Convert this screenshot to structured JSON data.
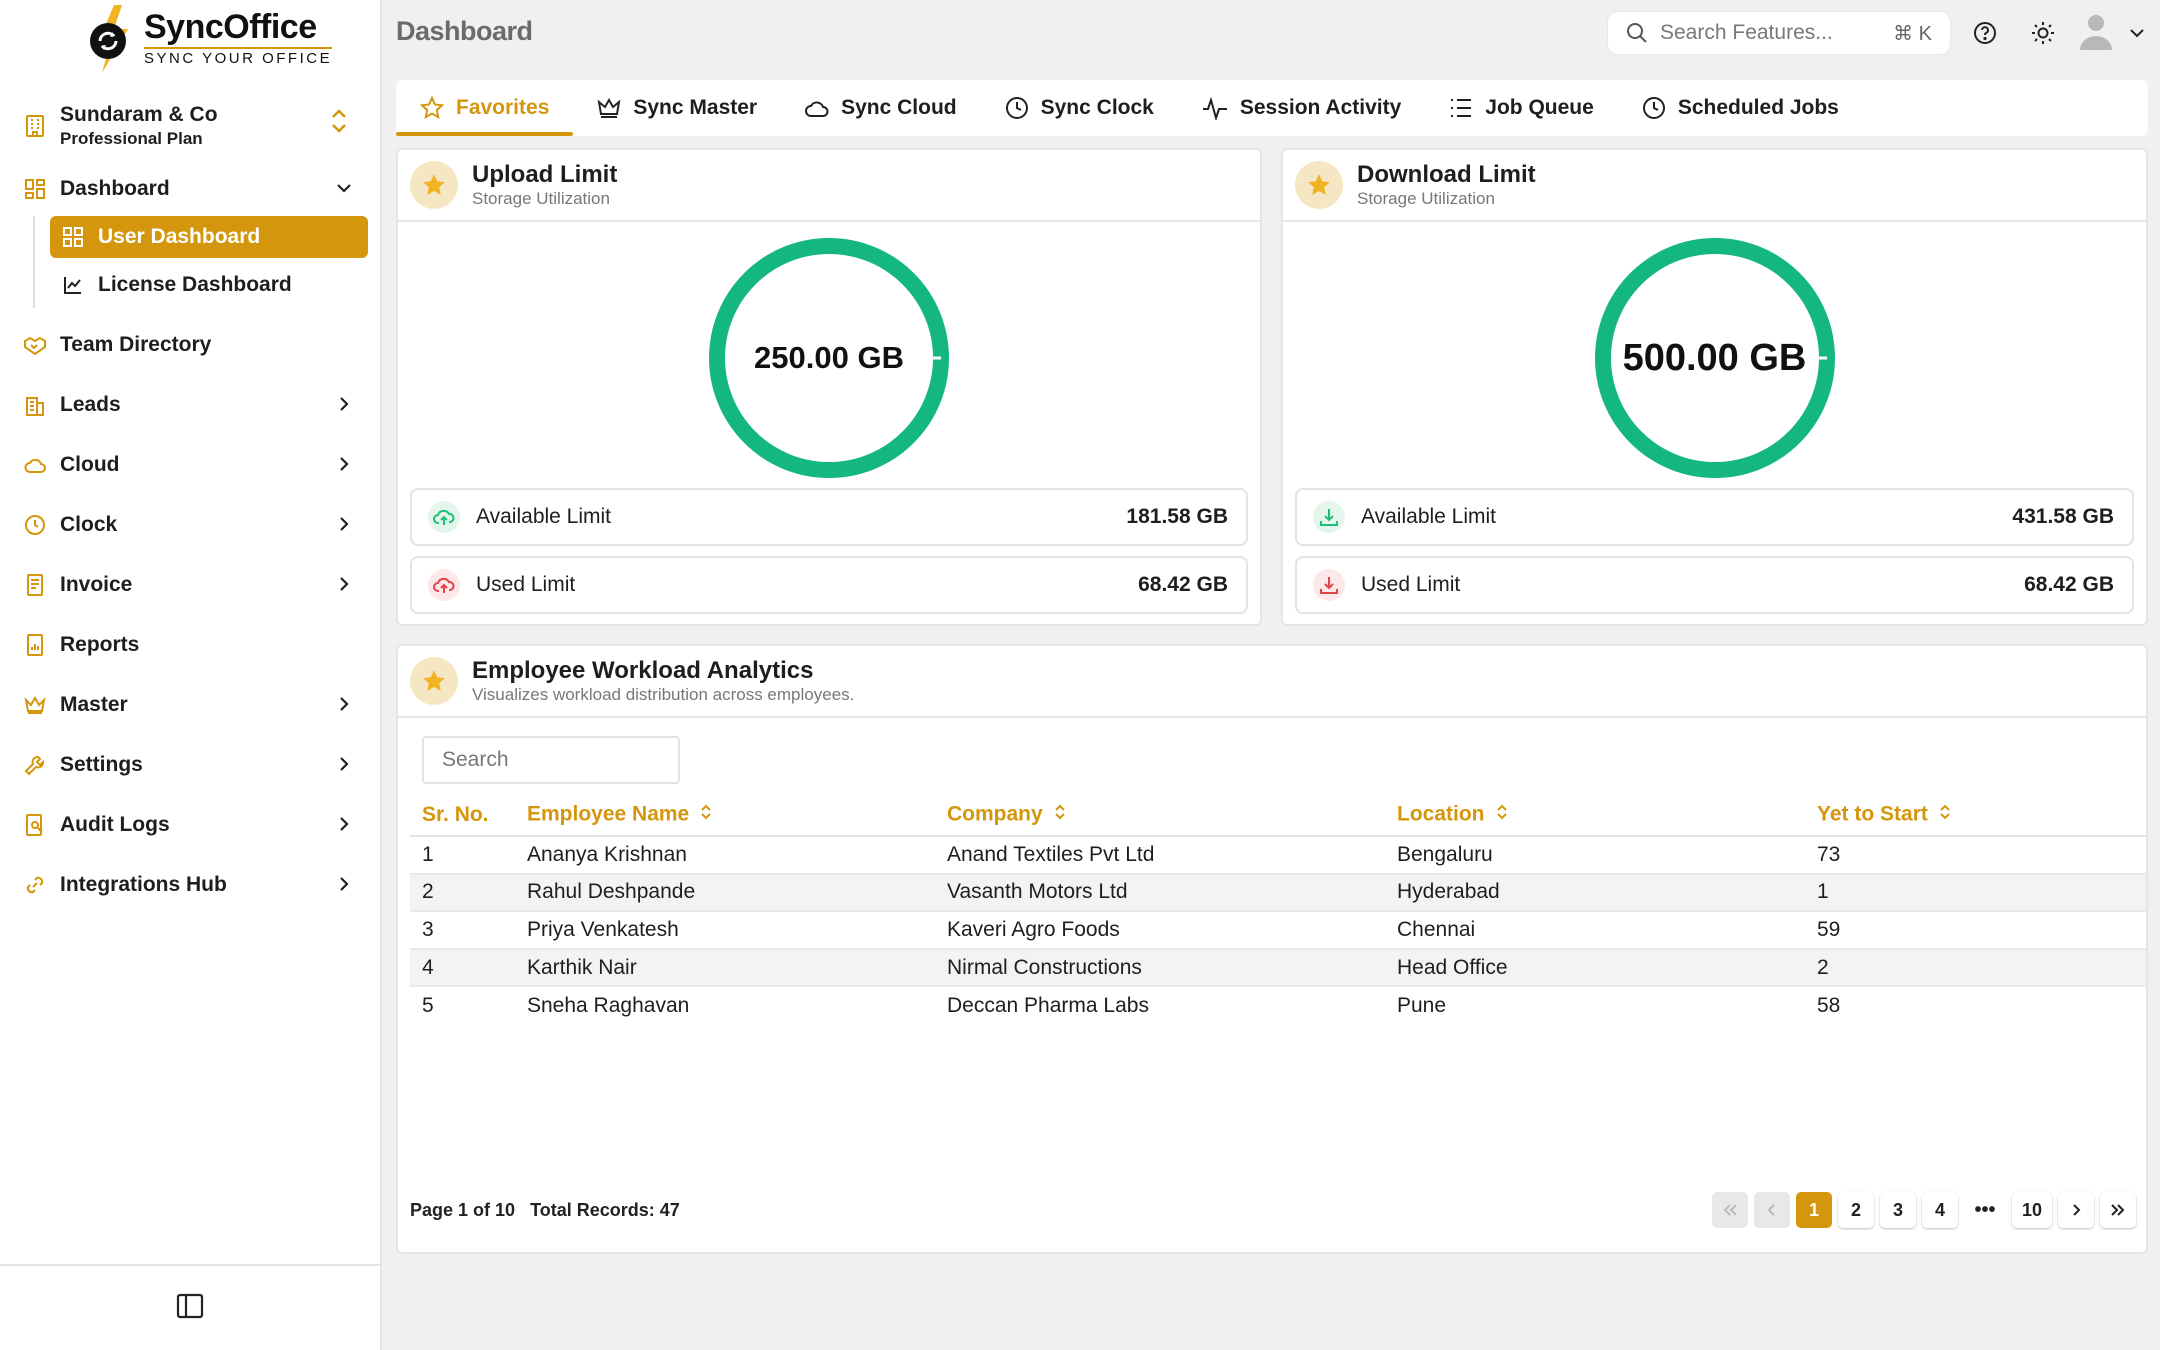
{
  "brand": {
    "name": "SyncOffice",
    "tagline": "SYNC YOUR OFFICE"
  },
  "org": {
    "name": "Sundaram & Co",
    "plan": "Professional Plan"
  },
  "sidebar": {
    "dashboard": "Dashboard",
    "user_dashboard": "User Dashboard",
    "license_dashboard": "License Dashboard",
    "team_directory": "Team Directory",
    "leads": "Leads",
    "cloud": "Cloud",
    "clock": "Clock",
    "invoice": "Invoice",
    "reports": "Reports",
    "master": "Master",
    "settings": "Settings",
    "audit_logs": "Audit Logs",
    "integrations_hub": "Integrations Hub"
  },
  "header": {
    "title": "Dashboard",
    "search_placeholder": "Search Features...",
    "shortcut": "⌘ K"
  },
  "tabs": {
    "favorites": "Favorites",
    "sync_master": "Sync Master",
    "sync_cloud": "Sync Cloud",
    "sync_clock": "Sync Clock",
    "session_activity": "Session Activity",
    "job_queue": "Job Queue",
    "scheduled_jobs": "Scheduled Jobs"
  },
  "upload": {
    "title": "Upload Limit",
    "subtitle": "Storage Utilization",
    "total": "250.00 GB",
    "available_label": "Available Limit",
    "available": "181.58 GB",
    "used_label": "Used Limit",
    "used": "68.42 GB"
  },
  "download": {
    "title": "Download Limit",
    "subtitle": "Storage Utilization",
    "total": "500.00 GB",
    "available_label": "Available Limit",
    "available": "431.58 GB",
    "used_label": "Used Limit",
    "used": "68.42 GB"
  },
  "colors": {
    "accent": "#d4960d",
    "donut": "#14b87e",
    "available_icon": "#1fbf73",
    "used_icon": "#e0434b"
  },
  "workload": {
    "title": "Employee Workload Analytics",
    "subtitle": "Visualizes workload distribution across employees.",
    "search_placeholder": "Search",
    "columns": {
      "sr": "Sr. No.",
      "name": "Employee Name",
      "company": "Company",
      "location": "Location",
      "yet": "Yet to Start"
    },
    "rows": [
      {
        "sr": "1",
        "name": "Ananya Krishnan",
        "company": "Anand Textiles Pvt Ltd",
        "location": "Bengaluru",
        "yet": "73"
      },
      {
        "sr": "2",
        "name": "Rahul Deshpande",
        "company": "Vasanth Motors Ltd",
        "location": "Hyderabad",
        "yet": "1"
      },
      {
        "sr": "3",
        "name": "Priya Venkatesh",
        "company": "Kaveri Agro Foods",
        "location": "Chennai",
        "yet": "59"
      },
      {
        "sr": "4",
        "name": "Karthik Nair",
        "company": "Nirmal Constructions",
        "location": "Head Office",
        "yet": "2"
      },
      {
        "sr": "5",
        "name": "Sneha Raghavan",
        "company": "Deccan Pharma Labs",
        "location": "Pune",
        "yet": "58"
      }
    ],
    "page_info": "Page 1 of 10",
    "total_records": "Total Records: 47",
    "pages": {
      "p1": "1",
      "p2": "2",
      "p3": "3",
      "p4": "4",
      "ellipsis": "•••",
      "last": "10"
    }
  }
}
